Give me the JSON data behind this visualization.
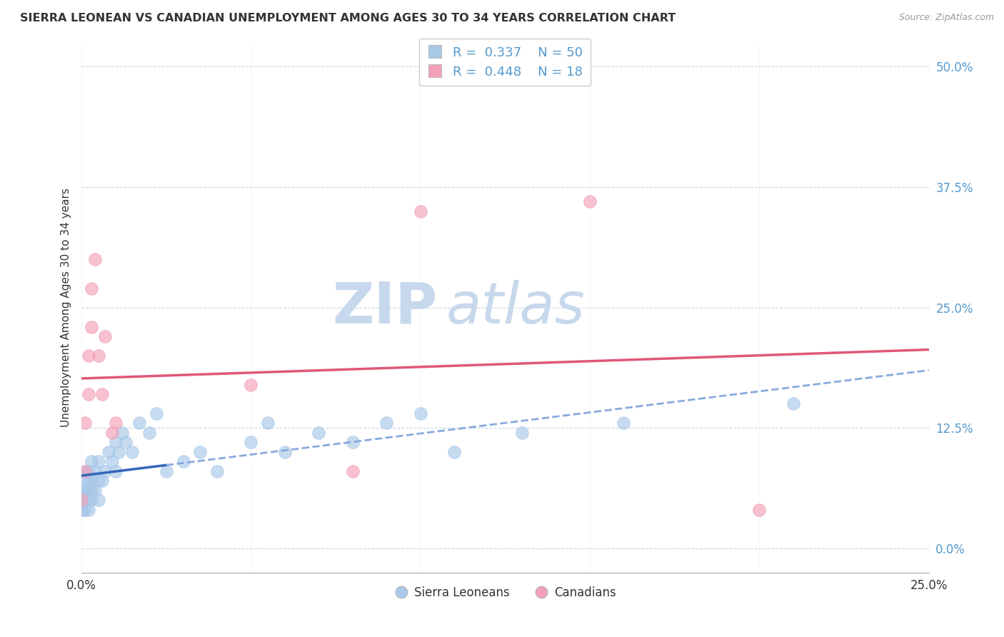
{
  "title": "SIERRA LEONEAN VS CANADIAN UNEMPLOYMENT AMONG AGES 30 TO 34 YEARS CORRELATION CHART",
  "source": "Source: ZipAtlas.com",
  "ylabel": "Unemployment Among Ages 30 to 34 years",
  "xlim": [
    0.0,
    0.25
  ],
  "ylim": [
    -0.025,
    0.525
  ],
  "yticks": [
    0.0,
    0.125,
    0.25,
    0.375,
    0.5
  ],
  "ytick_labels": [
    "0.0%",
    "12.5%",
    "25.0%",
    "37.5%",
    "50.0%"
  ],
  "xticks": [
    0.0,
    0.05,
    0.1,
    0.15,
    0.2,
    0.25
  ],
  "xtick_labels": [
    "0.0%",
    "",
    "",
    "",
    "",
    "25.0%"
  ],
  "sierra_color": "#a8c8e8",
  "canadian_color": "#f4a0b8",
  "sierra_line_color_solid": "#3366bb",
  "sierra_line_color_dash": "#88aadd",
  "canadian_line_color": "#e05878",
  "background_color": "#ffffff",
  "watermark_zip": "ZIP",
  "watermark_atlas": "atlas",
  "watermark_color": "#c8d8ec",
  "sierra_x": [
    0.0,
    0.0,
    0.0,
    0.001,
    0.001,
    0.001,
    0.001,
    0.001,
    0.002,
    0.002,
    0.002,
    0.002,
    0.002,
    0.003,
    0.003,
    0.003,
    0.003,
    0.004,
    0.004,
    0.005,
    0.005,
    0.005,
    0.006,
    0.007,
    0.008,
    0.009,
    0.01,
    0.01,
    0.011,
    0.012,
    0.013,
    0.015,
    0.017,
    0.02,
    0.022,
    0.025,
    0.03,
    0.035,
    0.04,
    0.05,
    0.055,
    0.06,
    0.07,
    0.08,
    0.09,
    0.1,
    0.11,
    0.13,
    0.16,
    0.21
  ],
  "sierra_y": [
    0.04,
    0.05,
    0.06,
    0.04,
    0.05,
    0.06,
    0.07,
    0.08,
    0.04,
    0.05,
    0.06,
    0.07,
    0.08,
    0.05,
    0.06,
    0.07,
    0.09,
    0.06,
    0.08,
    0.05,
    0.07,
    0.09,
    0.07,
    0.08,
    0.1,
    0.09,
    0.08,
    0.11,
    0.1,
    0.12,
    0.11,
    0.1,
    0.13,
    0.12,
    0.14,
    0.08,
    0.09,
    0.1,
    0.08,
    0.11,
    0.13,
    0.1,
    0.12,
    0.11,
    0.13,
    0.14,
    0.1,
    0.12,
    0.13,
    0.15
  ],
  "canadian_x": [
    0.0,
    0.001,
    0.001,
    0.002,
    0.002,
    0.003,
    0.003,
    0.004,
    0.005,
    0.006,
    0.007,
    0.009,
    0.01,
    0.05,
    0.08,
    0.1,
    0.15,
    0.2
  ],
  "canadian_y": [
    0.05,
    0.08,
    0.13,
    0.16,
    0.2,
    0.23,
    0.27,
    0.3,
    0.2,
    0.16,
    0.22,
    0.12,
    0.13,
    0.17,
    0.08,
    0.35,
    0.36,
    0.04
  ],
  "sierra_line_x_solid_start": 0.0,
  "sierra_line_x_solid_end": 0.025,
  "canadian_line_x_start": 0.0,
  "canadian_line_x_end": 0.25
}
